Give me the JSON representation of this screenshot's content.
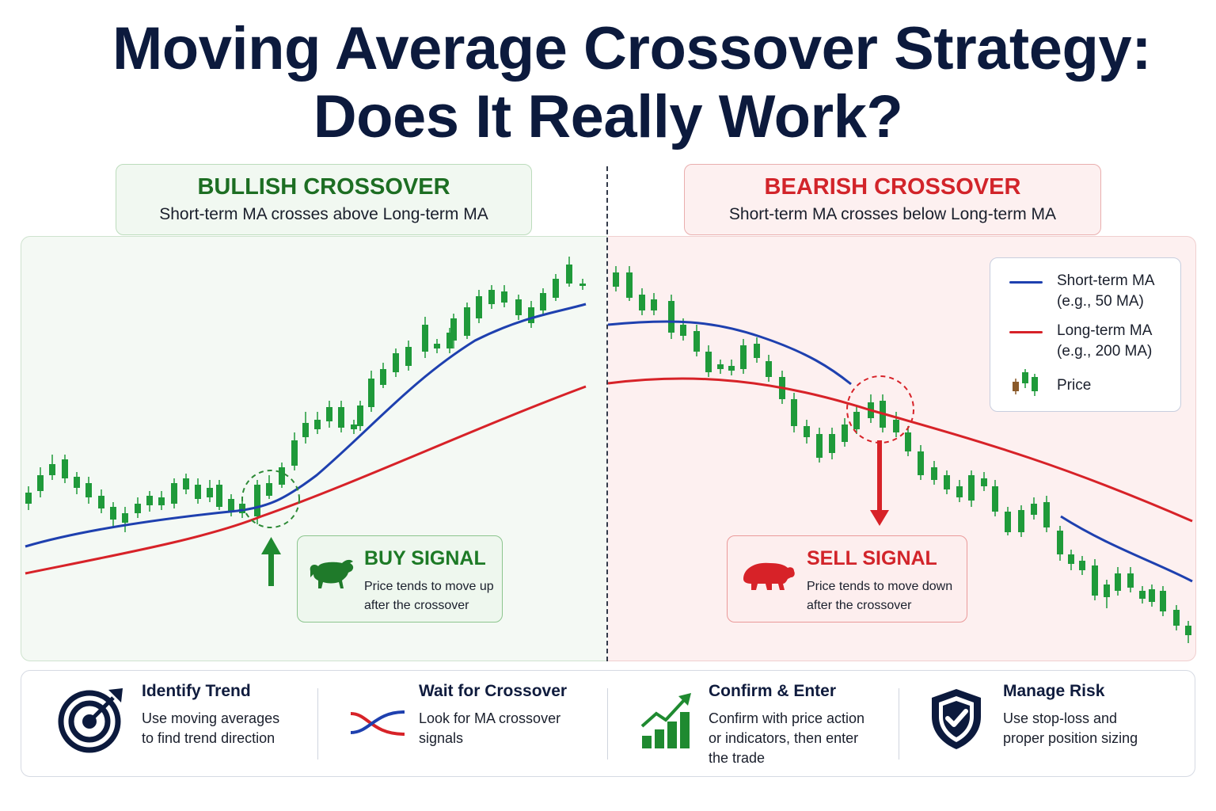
{
  "title": {
    "line1": "Moving Average Crossover Strategy:",
    "line2": "Does It Really Work?"
  },
  "bullish": {
    "title": "BULLISH CROSSOVER",
    "subtitle": "Short-term MA crosses above Long-term MA",
    "signal_title": "BUY SIGNAL",
    "signal_line1": "Price tends to move up",
    "signal_line2": "after the crossover"
  },
  "bearish": {
    "title": "BEARISH CROSSOVER",
    "subtitle": "Short-term MA crosses below Long-term MA",
    "signal_title": "SELL SIGNAL",
    "signal_line1": "Price tends to move down",
    "signal_line2": "after the crossover"
  },
  "legend": {
    "short_line1": "Short-term MA",
    "short_line2": "(e.g., 50 MA)",
    "long_line1": "Long-term MA",
    "long_line2": "(e.g., 200 MA)",
    "price": "Price"
  },
  "steps": [
    {
      "title": "Identify Trend",
      "line1": "Use moving averages",
      "line2": "to find trend direction",
      "line3": "",
      "icon": "target-icon"
    },
    {
      "title": "Wait for Crossover",
      "line1": "Look for MA crossover",
      "line2": "signals",
      "line3": "",
      "icon": "crossover-icon"
    },
    {
      "title": "Confirm & Enter",
      "line1": "Confirm with price action",
      "line2": "or indicators, then enter",
      "line3": "the trade",
      "icon": "growth-chart-icon"
    },
    {
      "title": "Manage Risk",
      "line1": "Use stop-loss and",
      "line2": "proper position sizing",
      "line3": "",
      "icon": "shield-check-icon"
    }
  ],
  "colors": {
    "short_ma": "#1e40af",
    "long_ma": "#d72228",
    "bull_candle": "#1f9a3a",
    "bear_candle": "#d8232a",
    "navy": "#0c1a3d"
  }
}
